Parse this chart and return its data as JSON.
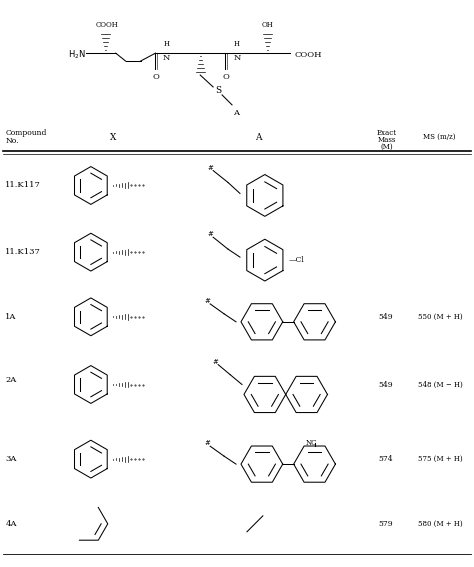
{
  "background_color": "#ffffff",
  "header": {
    "col1": "Compound\nNo.",
    "col2": "X",
    "col3": "A",
    "col4": "Exact\nMass\n(M)",
    "col5": "MS (m/z)"
  },
  "rows": [
    {
      "compound": "11.K117",
      "exact_mass": "",
      "ms": ""
    },
    {
      "compound": "11.K137",
      "exact_mass": "",
      "ms": ""
    },
    {
      "compound": "1A",
      "exact_mass": "549",
      "ms": "550 (M + H)"
    },
    {
      "compound": "2A",
      "exact_mass": "549",
      "ms": "548 (M − H)"
    },
    {
      "compound": "3A",
      "exact_mass": "574",
      "ms": "575 (M + H)"
    },
    {
      "compound": "4A",
      "exact_mass": "579",
      "ms": "580 (M + H)"
    }
  ]
}
